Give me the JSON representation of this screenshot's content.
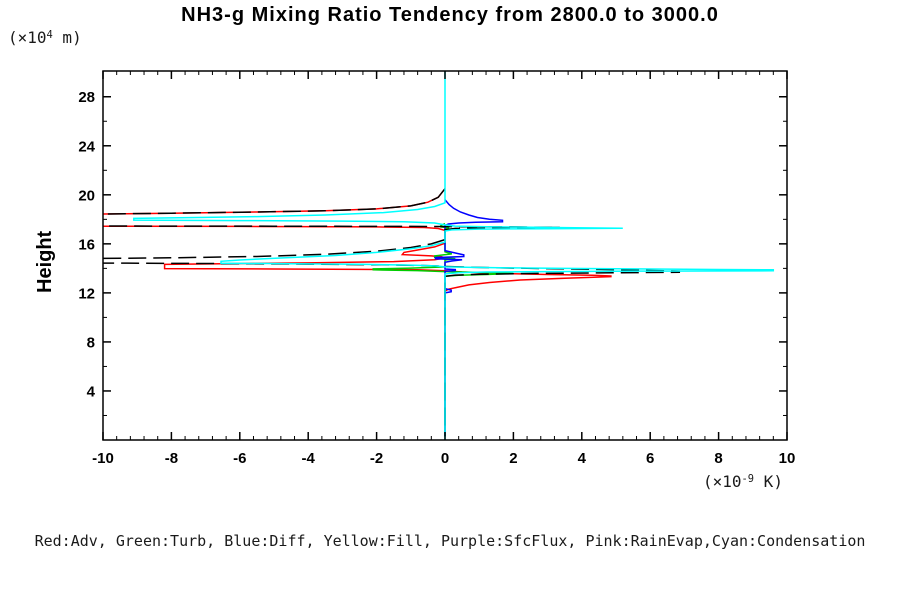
{
  "chart_data": {
    "type": "line",
    "title": "NH3-g Mixing Ratio Tendency from 2800.0 to 3000.0",
    "orientation": "vertical profile: x = tendency value, y = height",
    "grid": false,
    "x_axis": {
      "unit_pre": "(×10",
      "unit_sup": "-9",
      "unit_post": " K)",
      "range": [
        -10,
        10
      ],
      "ticks": [
        -10,
        -8,
        -6,
        -4,
        -2,
        0,
        2,
        4,
        6,
        8,
        10
      ],
      "minor_step": 0.4
    },
    "y_axis": {
      "label": "Height",
      "unit_pre": "(×10",
      "unit_sup": "4",
      "unit_post": " m)",
      "range": [
        0,
        30.1
      ],
      "ticks": [
        4,
        8,
        12,
        16,
        20,
        24,
        28
      ],
      "minor_step": 2
    },
    "zero_line": {
      "x": 0,
      "color": "#00ffff"
    },
    "legend_caption": "Red:Adv, Green:Turb, Blue:Diff, Yellow:Fill, Purple:SfcFlux, Pink:RainEvap,Cyan:Condensation",
    "series": [
      {
        "name": "Adv",
        "color": "#ff0000",
        "dash": null,
        "points": [
          [
            0,
            20.5
          ],
          [
            -0.2,
            19.8
          ],
          [
            -0.5,
            19.4
          ],
          [
            -1.0,
            19.1
          ],
          [
            -2.0,
            18.85
          ],
          [
            -3.5,
            18.7
          ],
          [
            -5.5,
            18.6
          ],
          [
            -8,
            18.5
          ],
          [
            -10.5,
            18.42
          ],
          [
            -10.5,
            17.44
          ],
          [
            -6,
            17.42
          ],
          [
            -2,
            17.38
          ],
          [
            -0.6,
            17.33
          ],
          [
            -0.2,
            17.25
          ],
          [
            0,
            17.1
          ],
          [
            0,
            16.05
          ],
          [
            -0.3,
            15.75
          ],
          [
            -0.8,
            15.5
          ],
          [
            -1.2,
            15.3
          ],
          [
            -1.25,
            15.12
          ],
          [
            -0.4,
            15.02
          ],
          [
            -0.1,
            14.95
          ],
          [
            0,
            14.85
          ],
          [
            -0.3,
            14.7
          ],
          [
            -1.5,
            14.55
          ],
          [
            -4,
            14.45
          ],
          [
            -6.5,
            14.38
          ],
          [
            -8.2,
            14.32
          ],
          [
            -8.2,
            13.98
          ],
          [
            -5,
            13.95
          ],
          [
            -2.5,
            13.92
          ],
          [
            -0.8,
            13.88
          ],
          [
            0,
            13.8
          ],
          [
            0.5,
            13.7
          ],
          [
            1.5,
            13.6
          ],
          [
            3.0,
            13.5
          ],
          [
            4.3,
            13.44
          ],
          [
            4.85,
            13.38
          ],
          [
            4.85,
            13.32
          ],
          [
            3.5,
            13.2
          ],
          [
            2.2,
            13.05
          ],
          [
            1.3,
            12.85
          ],
          [
            0.7,
            12.65
          ],
          [
            0.35,
            12.45
          ],
          [
            0.1,
            12.3
          ],
          [
            0,
            12.15
          ],
          [
            0,
            0.3
          ]
        ]
      },
      {
        "name": "Turb",
        "color": "#00cc00",
        "dash": null,
        "points": [
          [
            0,
            17.65
          ],
          [
            -0.12,
            17.5
          ],
          [
            -0.12,
            17.38
          ],
          [
            0.12,
            17.3
          ],
          [
            0,
            17.18
          ],
          [
            0,
            15.35
          ],
          [
            0.2,
            15.18
          ],
          [
            -0.3,
            15.02
          ],
          [
            -0.3,
            14.9
          ],
          [
            0.3,
            14.8
          ],
          [
            0,
            14.68
          ],
          [
            0,
            14.12
          ],
          [
            -1.0,
            14.02
          ],
          [
            -2.1,
            13.96
          ],
          [
            -2.1,
            13.88
          ],
          [
            -0.8,
            13.82
          ],
          [
            0,
            13.74
          ],
          [
            0.8,
            13.68
          ],
          [
            1.5,
            13.63
          ],
          [
            2.0,
            13.58
          ],
          [
            1.2,
            13.5
          ],
          [
            0.4,
            13.44
          ],
          [
            0,
            13.36
          ],
          [
            0,
            0.3
          ]
        ]
      },
      {
        "name": "Diff",
        "color": "#0000ff",
        "dash": null,
        "points": [
          [
            0,
            19.6
          ],
          [
            0.12,
            19.2
          ],
          [
            0.25,
            18.9
          ],
          [
            0.45,
            18.6
          ],
          [
            0.7,
            18.35
          ],
          [
            0.95,
            18.15
          ],
          [
            1.3,
            18.0
          ],
          [
            1.68,
            17.92
          ],
          [
            1.68,
            17.8
          ],
          [
            0.9,
            17.76
          ],
          [
            0.4,
            17.7
          ],
          [
            0.1,
            17.62
          ],
          [
            0,
            17.5
          ],
          [
            0,
            15.45
          ],
          [
            0.3,
            15.25
          ],
          [
            0.55,
            15.1
          ],
          [
            0.55,
            14.97
          ],
          [
            -0.28,
            14.88
          ],
          [
            -0.28,
            14.78
          ],
          [
            0.5,
            14.7
          ],
          [
            0.2,
            14.6
          ],
          [
            0,
            14.5
          ],
          [
            0,
            13.95
          ],
          [
            0.3,
            13.9
          ],
          [
            0.3,
            13.82
          ],
          [
            0,
            13.76
          ],
          [
            0,
            12.35
          ],
          [
            0.18,
            12.22
          ],
          [
            0.18,
            12.1
          ],
          [
            0,
            12.0
          ],
          [
            0,
            0.3
          ]
        ]
      },
      {
        "name": "Fill",
        "color": "#ffff00",
        "dash": null,
        "points": []
      },
      {
        "name": "SfcFlux",
        "color": "#aa00ff",
        "dash": null,
        "points": []
      },
      {
        "name": "RainEvap",
        "color": "#ff88cc",
        "dash": null,
        "points": []
      },
      {
        "name": "Total (unlabeled, black dashed)",
        "color": "#000000",
        "dash": [
          18,
          7
        ],
        "points": [
          [
            0,
            20.5
          ],
          [
            -0.2,
            19.8
          ],
          [
            -0.5,
            19.4
          ],
          [
            -1.0,
            19.1
          ],
          [
            -2.0,
            18.85
          ],
          [
            -3.5,
            18.7
          ],
          [
            -5.5,
            18.6
          ],
          [
            -8,
            18.5
          ],
          [
            -10.5,
            18.42
          ],
          [
            -10.5,
            17.46
          ],
          [
            -5,
            17.44
          ],
          [
            -1,
            17.42
          ],
          [
            0.5,
            17.4
          ],
          [
            1.8,
            17.38
          ],
          [
            2.6,
            17.36
          ],
          [
            3.35,
            17.34
          ],
          [
            1.5,
            17.3
          ],
          [
            0.3,
            17.26
          ],
          [
            0,
            17.15
          ],
          [
            0,
            16.35
          ],
          [
            -0.4,
            16.0
          ],
          [
            -1.0,
            15.7
          ],
          [
            -2.0,
            15.4
          ],
          [
            -3.5,
            15.15
          ],
          [
            -5.5,
            14.97
          ],
          [
            -8,
            14.86
          ],
          [
            -10.5,
            14.8
          ],
          [
            -10.5,
            14.44
          ],
          [
            -7,
            14.4
          ],
          [
            -4,
            14.35
          ],
          [
            -1.5,
            14.28
          ],
          [
            -0.4,
            14.22
          ],
          [
            0,
            14.15
          ],
          [
            0.6,
            14.1
          ],
          [
            1.5,
            14.05
          ],
          [
            3,
            13.98
          ],
          [
            4.5,
            13.92
          ],
          [
            5.8,
            13.85
          ],
          [
            6.85,
            13.78
          ],
          [
            6.85,
            13.68
          ],
          [
            4.5,
            13.63
          ],
          [
            2.5,
            13.58
          ],
          [
            1,
            13.52
          ],
          [
            0.3,
            13.45
          ],
          [
            0,
            13.35
          ],
          [
            0,
            0.3
          ]
        ]
      },
      {
        "name": "Condensation",
        "color": "#00ffff",
        "dash": null,
        "points": [
          [
            0,
            30.1
          ],
          [
            0,
            19.35
          ],
          [
            -0.3,
            19.05
          ],
          [
            -0.8,
            18.8
          ],
          [
            -1.8,
            18.55
          ],
          [
            -3.5,
            18.35
          ],
          [
            -5.5,
            18.22
          ],
          [
            -7.5,
            18.14
          ],
          [
            -9.1,
            18.08
          ],
          [
            -9.1,
            17.94
          ],
          [
            -6,
            17.9
          ],
          [
            -3,
            17.86
          ],
          [
            -1.2,
            17.8
          ],
          [
            -0.3,
            17.7
          ],
          [
            0,
            17.55
          ],
          [
            0.3,
            17.45
          ],
          [
            1.2,
            17.4
          ],
          [
            2.5,
            17.36
          ],
          [
            3.8,
            17.32
          ],
          [
            5.2,
            17.28
          ],
          [
            3.0,
            17.24
          ],
          [
            1.0,
            17.2
          ],
          [
            0.2,
            17.14
          ],
          [
            0,
            17.05
          ],
          [
            0,
            16.15
          ],
          [
            -0.4,
            15.85
          ],
          [
            -1.0,
            15.6
          ],
          [
            -2.0,
            15.3
          ],
          [
            -3.2,
            15.05
          ],
          [
            -4.8,
            14.85
          ],
          [
            -6.0,
            14.68
          ],
          [
            -6.55,
            14.58
          ],
          [
            -6.55,
            14.42
          ],
          [
            -4.5,
            14.38
          ],
          [
            -2.5,
            14.33
          ],
          [
            -1.0,
            14.27
          ],
          [
            -0.3,
            14.2
          ],
          [
            0,
            14.12
          ],
          [
            0.8,
            14.08
          ],
          [
            2,
            14.04
          ],
          [
            3.5,
            14.0
          ],
          [
            5,
            13.97
          ],
          [
            6.5,
            13.94
          ],
          [
            8,
            13.91
          ],
          [
            9.6,
            13.88
          ],
          [
            9.6,
            13.8
          ],
          [
            6,
            13.78
          ],
          [
            3,
            13.74
          ],
          [
            1.2,
            13.7
          ],
          [
            0.4,
            13.64
          ],
          [
            0,
            13.55
          ],
          [
            0,
            0
          ]
        ]
      }
    ]
  }
}
